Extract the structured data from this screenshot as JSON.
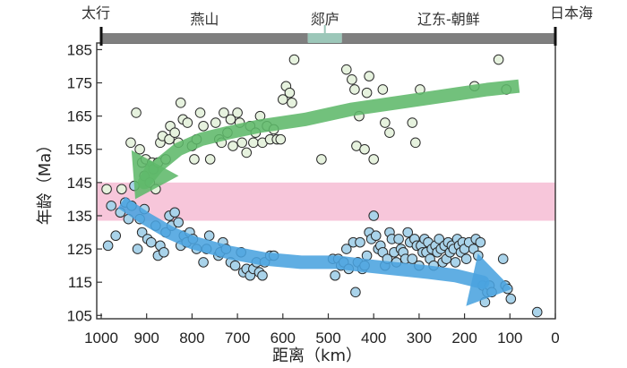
{
  "chart_data": {
    "type": "scatter",
    "xlabel": "距离（km）",
    "ylabel": "年龄（Ma）",
    "xlim": [
      1000,
      0
    ],
    "ylim": [
      104,
      187
    ],
    "x_ticks": [
      1000,
      900,
      800,
      700,
      600,
      500,
      400,
      300,
      200,
      100,
      0
    ],
    "y_ticks": [
      105,
      115,
      125,
      135,
      145,
      155,
      165,
      175,
      185
    ],
    "highlight_band": {
      "y_range": [
        133.5,
        145
      ],
      "color": "#f7c6da"
    },
    "regions": {
      "end_labels": [
        "太行",
        "日本海"
      ],
      "segments": [
        {
          "label": "燕山",
          "from": 1000,
          "to": 545,
          "color": "#7f7f7f"
        },
        {
          "label": "郯庐",
          "from": 545,
          "to": 470,
          "color": "#9cc7b9"
        },
        {
          "label": "辽东-朝鲜",
          "from": 470,
          "to": 0,
          "color": "#7f7f7f"
        }
      ]
    },
    "series": [
      {
        "name": "older",
        "color": "#e6f2de",
        "points": [
          [
            988,
            143
          ],
          [
            955,
            143
          ],
          [
            935,
            157
          ],
          [
            923,
            166
          ],
          [
            915,
            155
          ],
          [
            910,
            151
          ],
          [
            905,
            147
          ],
          [
            902,
            152
          ],
          [
            893,
            145
          ],
          [
            888,
            151
          ],
          [
            885,
            149
          ],
          [
            880,
            143
          ],
          [
            875,
            151
          ],
          [
            870,
            157
          ],
          [
            865,
            159
          ],
          [
            858,
            152
          ],
          [
            850,
            158
          ],
          [
            848,
            162
          ],
          [
            838,
            160
          ],
          [
            830,
            157
          ],
          [
            825,
            169
          ],
          [
            820,
            164
          ],
          [
            810,
            163
          ],
          [
            800,
            156
          ],
          [
            795,
            152
          ],
          [
            790,
            158
          ],
          [
            782,
            166
          ],
          [
            775,
            162
          ],
          [
            760,
            152
          ],
          [
            748,
            163
          ],
          [
            740,
            158
          ],
          [
            735,
            157
          ],
          [
            730,
            166
          ],
          [
            722,
            160
          ],
          [
            715,
            164
          ],
          [
            710,
            156
          ],
          [
            700,
            166
          ],
          [
            695,
            163
          ],
          [
            690,
            157
          ],
          [
            680,
            154
          ],
          [
            672,
            162
          ],
          [
            665,
            157
          ],
          [
            660,
            160
          ],
          [
            650,
            165
          ],
          [
            645,
            157
          ],
          [
            635,
            162
          ],
          [
            628,
            158
          ],
          [
            620,
            161
          ],
          [
            613,
            158
          ],
          [
            605,
            158
          ],
          [
            600,
            170
          ],
          [
            593,
            174
          ],
          [
            585,
            172
          ],
          [
            580,
            169
          ],
          [
            575,
            182
          ],
          [
            515,
            152
          ],
          [
            460,
            179
          ],
          [
            448,
            176
          ],
          [
            442,
            173
          ],
          [
            438,
            156
          ],
          [
            432,
            165
          ],
          [
            420,
            155
          ],
          [
            415,
            172
          ],
          [
            410,
            177
          ],
          [
            400,
            152
          ],
          [
            380,
            173
          ],
          [
            375,
            163
          ],
          [
            365,
            160
          ],
          [
            315,
            163
          ],
          [
            308,
            157
          ],
          [
            298,
            173
          ],
          [
            178,
            174
          ],
          [
            125,
            182
          ],
          [
            108,
            173
          ]
        ]
      },
      {
        "name": "younger",
        "color": "#a9d3ea",
        "points": [
          [
            985,
            126
          ],
          [
            978,
            138
          ],
          [
            968,
            129
          ],
          [
            958,
            136
          ],
          [
            947,
            139
          ],
          [
            940,
            134
          ],
          [
            933,
            138
          ],
          [
            927,
            144
          ],
          [
            920,
            125
          ],
          [
            915,
            134
          ],
          [
            910,
            130
          ],
          [
            905,
            137
          ],
          [
            898,
            128
          ],
          [
            890,
            127
          ],
          [
            880,
            132
          ],
          [
            875,
            123
          ],
          [
            870,
            126
          ],
          [
            862,
            124
          ],
          [
            858,
            130
          ],
          [
            850,
            135
          ],
          [
            845,
            132
          ],
          [
            838,
            136
          ],
          [
            830,
            133
          ],
          [
            825,
            126
          ],
          [
            818,
            129
          ],
          [
            812,
            127
          ],
          [
            805,
            130
          ],
          [
            798,
            128
          ],
          [
            790,
            125
          ],
          [
            775,
            121
          ],
          [
            768,
            125
          ],
          [
            762,
            129
          ],
          [
            742,
            123
          ],
          [
            738,
            124
          ],
          [
            732,
            127
          ],
          [
            725,
            125
          ],
          [
            715,
            121
          ],
          [
            705,
            120
          ],
          [
            692,
            124
          ],
          [
            687,
            118
          ],
          [
            680,
            119
          ],
          [
            672,
            117
          ],
          [
            665,
            119
          ],
          [
            658,
            121
          ],
          [
            652,
            118
          ],
          [
            645,
            117
          ],
          [
            640,
            121
          ],
          [
            628,
            123
          ],
          [
            620,
            123
          ],
          [
            490,
            122
          ],
          [
            485,
            117
          ],
          [
            478,
            122
          ],
          [
            472,
            120
          ],
          [
            466,
            121
          ],
          [
            460,
            125
          ],
          [
            455,
            119
          ],
          [
            445,
            127
          ],
          [
            440,
            112
          ],
          [
            435,
            121
          ],
          [
            430,
            127
          ],
          [
            425,
            119
          ],
          [
            420,
            120
          ],
          [
            415,
            123
          ],
          [
            410,
            130
          ],
          [
            405,
            128
          ],
          [
            400,
            135
          ],
          [
            395,
            129
          ],
          [
            390,
            125
          ],
          [
            385,
            126
          ],
          [
            380,
            124
          ],
          [
            375,
            120
          ],
          [
            370,
            122
          ],
          [
            365,
            130
          ],
          [
            360,
            128
          ],
          [
            355,
            124
          ],
          [
            350,
            121
          ],
          [
            345,
            128
          ],
          [
            340,
            125
          ],
          [
            335,
            124
          ],
          [
            330,
            122
          ],
          [
            325,
            130
          ],
          [
            320,
            127
          ],
          [
            315,
            122
          ],
          [
            310,
            128
          ],
          [
            305,
            126
          ],
          [
            300,
            120
          ],
          [
            296,
            126
          ],
          [
            292,
            124
          ],
          [
            288,
            128
          ],
          [
            284,
            124
          ],
          [
            280,
            127
          ],
          [
            276,
            122
          ],
          [
            272,
            125
          ],
          [
            268,
            120
          ],
          [
            264,
            126
          ],
          [
            260,
            124
          ],
          [
            256,
            128
          ],
          [
            252,
            125
          ],
          [
            248,
            121
          ],
          [
            244,
            126
          ],
          [
            240,
            122
          ],
          [
            236,
            127
          ],
          [
            232,
            124
          ],
          [
            228,
            126
          ],
          [
            224,
            125
          ],
          [
            220,
            121
          ],
          [
            216,
            128
          ],
          [
            212,
            126
          ],
          [
            208,
            124
          ],
          [
            204,
            127
          ],
          [
            200,
            125
          ],
          [
            196,
            122
          ],
          [
            190,
            127
          ],
          [
            180,
            125
          ],
          [
            175,
            128
          ],
          [
            170,
            123
          ],
          [
            165,
            127
          ],
          [
            160,
            114
          ],
          [
            155,
            109
          ],
          [
            150,
            112
          ],
          [
            145,
            114
          ],
          [
            140,
            112
          ],
          [
            115,
            122
          ],
          [
            110,
            114
          ],
          [
            105,
            113
          ],
          [
            98,
            110
          ],
          [
            40,
            106
          ]
        ]
      }
    ],
    "trend_arrows": [
      {
        "name": "green-trend",
        "color": "#5fb86a",
        "x": [
          80,
          150,
          250,
          350,
          450,
          550,
          650,
          720,
          780,
          830,
          875,
          905,
          925
        ],
        "y": [
          174,
          173,
          171,
          169,
          167,
          164,
          162,
          160,
          158,
          155,
          150,
          145,
          140
        ]
      },
      {
        "name": "blue-trend",
        "color": "#4aa3df",
        "x": [
          955,
          900,
          850,
          800,
          720,
          640,
          560,
          480,
          420,
          350,
          280,
          220,
          160,
          95
        ],
        "y": [
          139,
          134,
          130,
          127,
          124,
          122,
          121,
          121,
          120,
          119,
          118,
          117,
          115,
          113
        ]
      }
    ]
  }
}
